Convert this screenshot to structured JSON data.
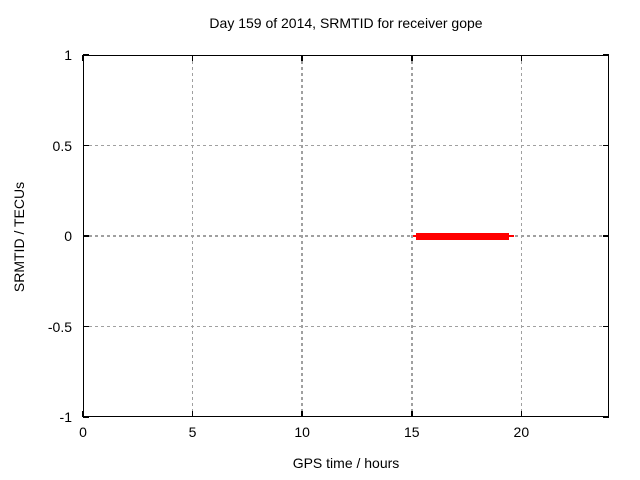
{
  "chart_data": {
    "type": "line",
    "title": "Day 159 of 2014, SRMTID for receiver gope",
    "xlabel": "GPS time / hours",
    "ylabel": "SRMTID / TECUs",
    "xlim": [
      0,
      24
    ],
    "ylim": [
      -1,
      1
    ],
    "xticks": [
      {
        "value": 0,
        "label": "0"
      },
      {
        "value": 5,
        "label": "5"
      },
      {
        "value": 10,
        "label": "10"
      },
      {
        "value": 15,
        "label": "15"
      },
      {
        "value": 20,
        "label": "20"
      }
    ],
    "yticks": [
      {
        "value": 1,
        "label": "1"
      },
      {
        "value": 0.5,
        "label": "0.5"
      },
      {
        "value": 0,
        "label": "0"
      },
      {
        "value": -0.5,
        "label": "-0.5"
      },
      {
        "value": -1,
        "label": "-1"
      }
    ],
    "grid": true,
    "legend": "none",
    "series": [
      {
        "name": "SRMTID",
        "color": "#ff0000",
        "description": "flat segment at SRMTID = 0 TECUs between about hour 15.1 and hour 19.6",
        "segments": [
          {
            "y": 0,
            "x_start": 15.05,
            "x_end": 19.65,
            "weight": "thin"
          },
          {
            "y": 0,
            "x_start": 15.2,
            "x_end": 19.45,
            "weight": "thick"
          }
        ]
      }
    ],
    "colors": {
      "background": "#ffffff",
      "axis": "#000000",
      "grid": "#a0a0a0",
      "series": "#ff0000"
    }
  }
}
